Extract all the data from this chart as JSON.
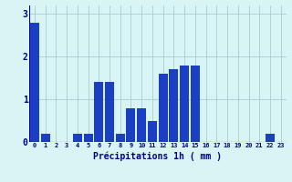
{
  "values": [
    2.8,
    0.2,
    0.0,
    0.0,
    0.2,
    0.2,
    1.4,
    1.4,
    0.2,
    0.8,
    0.8,
    0.5,
    1.6,
    1.7,
    1.8,
    1.8,
    0.0,
    0.0,
    0.0,
    0.0,
    0.0,
    0.0,
    0.2,
    0.0
  ],
  "categories": [
    "0",
    "1",
    "2",
    "3",
    "4",
    "5",
    "6",
    "7",
    "8",
    "9",
    "10",
    "11",
    "12",
    "13",
    "14",
    "15",
    "16",
    "17",
    "18",
    "19",
    "20",
    "21",
    "22",
    "23"
  ],
  "bar_color": "#1a3fc4",
  "background_color": "#d8f4f4",
  "grid_color": "#aacccc",
  "xlabel": "Précipitations 1h ( mm )",
  "label_color": "#00008b",
  "tick_color": "#00008b",
  "ylim": [
    0,
    3.2
  ],
  "yticks": [
    0,
    1,
    2,
    3
  ]
}
